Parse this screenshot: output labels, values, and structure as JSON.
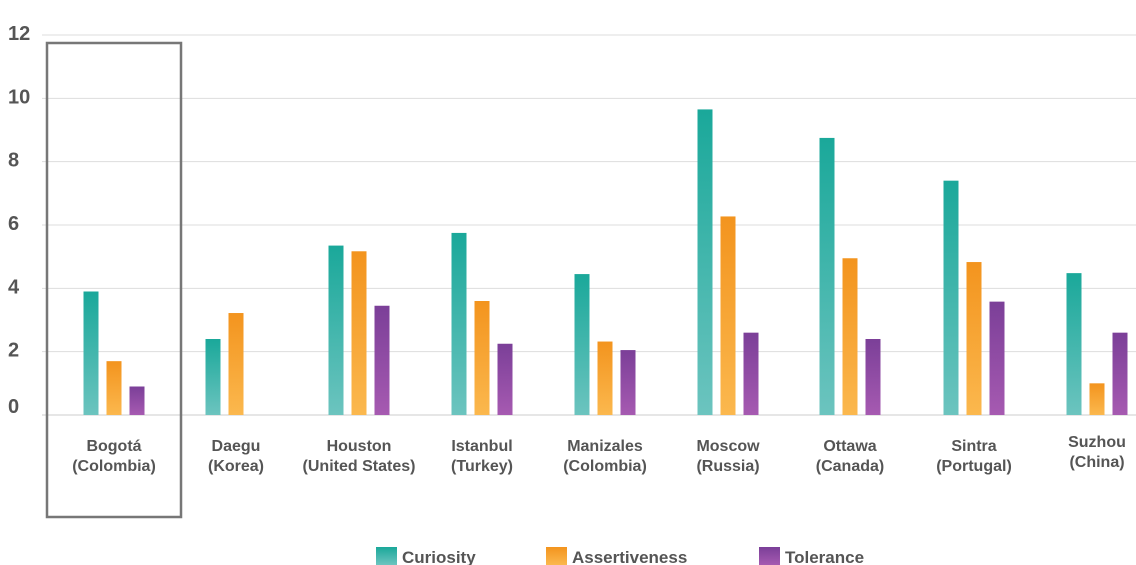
{
  "chart_data": {
    "type": "bar",
    "title": "",
    "xlabel": "",
    "ylabel": "",
    "ylim": [
      0,
      12
    ],
    "yticks": [
      0,
      2,
      4,
      6,
      8,
      10,
      12
    ],
    "grid": true,
    "legend_position": "bottom",
    "highlighted_category": "Bogotá (Colombia)",
    "categories": [
      [
        "Bogotá",
        "(Colombia)"
      ],
      [
        "Daegu",
        "(Korea)"
      ],
      [
        "Houston",
        "(United States)"
      ],
      [
        "Istanbul",
        "(Turkey)"
      ],
      [
        "Manizales",
        "(Colombia)"
      ],
      [
        "Moscow",
        "(Russia)"
      ],
      [
        "Ottawa",
        "(Canada)"
      ],
      [
        "Sintra",
        "(Portugal)"
      ],
      [
        "Suzhou",
        "(China)"
      ]
    ],
    "series": [
      {
        "name": "Curiosity",
        "color_top": "#1aa89a",
        "color_bottom": "#6cc4bf",
        "values": [
          3.9,
          2.4,
          5.35,
          5.75,
          4.45,
          9.65,
          8.75,
          7.4,
          4.48
        ]
      },
      {
        "name": "Assertiveness",
        "color_top": "#f3941e",
        "color_bottom": "#fbb84e",
        "values": [
          1.7,
          3.22,
          5.17,
          3.6,
          2.32,
          6.27,
          4.95,
          4.83,
          1.0
        ]
      },
      {
        "name": "Tolerance",
        "color_top": "#7b3f98",
        "color_bottom": "#a65ab1",
        "values": [
          0.9,
          null,
          3.45,
          2.25,
          2.05,
          2.6,
          2.4,
          3.58,
          2.6
        ]
      }
    ]
  }
}
